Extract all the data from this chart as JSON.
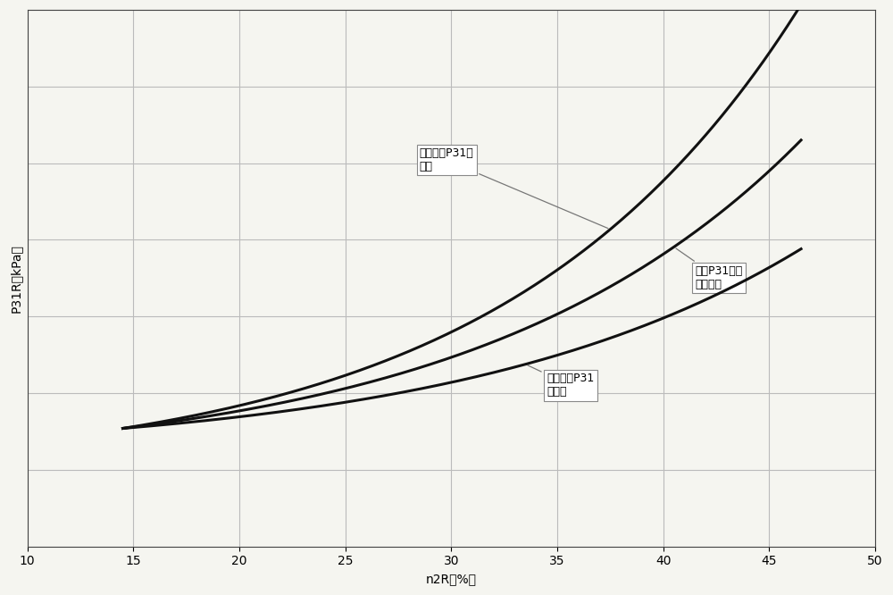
{
  "title": "",
  "xlabel": "n2R（%）",
  "ylabel": "P31R（kPa）",
  "xlim": [
    10,
    50
  ],
  "xticks": [
    10,
    15,
    20,
    25,
    30,
    35,
    40,
    45,
    50
  ],
  "background_color": "#f5f5f0",
  "grid_color": "#bbbbbb",
  "line_color": "#111111",
  "annotation1_text": "正常起动P31的\n斜率",
  "annotation2_text": "失速P31斜率\n判断阈値",
  "annotation3_text": "失速起动P31\n的斜率",
  "font_size": 9,
  "tick_font_size": 10,
  "xlabel_size": 10,
  "ylabel_size": 10
}
